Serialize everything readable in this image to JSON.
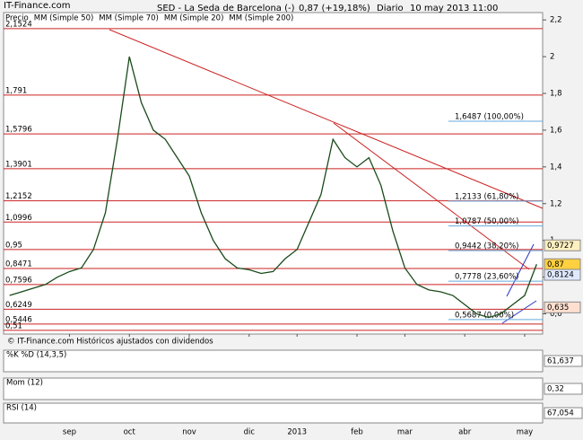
{
  "chart_data": {
    "type": "line",
    "site": "IT-Finance.com",
    "title": "SED - La Seda de Barcelona (-)",
    "quote": "0,87 (+19,18%)",
    "period": "Diario",
    "date": "10 may 2013 11:00",
    "legend": [
      {
        "text": "Precio",
        "color": "#000000"
      },
      {
        "text": "MM (Simple 50)",
        "color": "#aaaaaa"
      },
      {
        "text": "MM (Simple 70)",
        "color": "#2233cc"
      },
      {
        "text": "MM (Simple 20)",
        "color": "#cc2222"
      },
      {
        "text": "MM (Simple 200)",
        "color": "#228844"
      }
    ],
    "footnote": "© IT-Finance.com  Históricos ajustados con dividendos",
    "categories": [
      null,
      null,
      null,
      null,
      null,
      "sep",
      null,
      null,
      null,
      null,
      "oct",
      null,
      null,
      null,
      null,
      "nov",
      null,
      null,
      null,
      null,
      "dic",
      null,
      null,
      null,
      "2013",
      null,
      null,
      null,
      null,
      "feb",
      null,
      null,
      null,
      "mar",
      null,
      null,
      null,
      null,
      "abr",
      null,
      null,
      null,
      null,
      "may",
      null
    ],
    "series": [
      {
        "name": "Precio",
        "color": "#1a4a1a",
        "values": [
          0.7,
          0.72,
          0.74,
          0.76,
          0.8,
          0.83,
          0.85,
          0.95,
          1.15,
          1.55,
          2.0,
          1.75,
          1.6,
          1.55,
          1.45,
          1.35,
          1.15,
          1.0,
          0.9,
          0.85,
          0.84,
          0.82,
          0.83,
          0.9,
          0.95,
          1.1,
          1.25,
          1.55,
          1.45,
          1.4,
          1.45,
          1.3,
          1.05,
          0.85,
          0.76,
          0.73,
          0.72,
          0.7,
          0.65,
          0.6,
          0.58,
          0.6,
          0.65,
          0.7,
          0.87
        ]
      }
    ],
    "ylim": [
      0.49,
      2.24
    ],
    "yticks": [
      {
        "value": 2.2,
        "label": "2,2"
      },
      2,
      {
        "value": 1.8,
        "label": "1,8"
      },
      {
        "value": 1.6,
        "label": "1,6"
      },
      {
        "value": 1.4,
        "label": "1,4"
      },
      {
        "value": 1.2,
        "label": "1,2"
      },
      1,
      {
        "value": 0.8,
        "label": "0,8"
      },
      {
        "value": 0.6,
        "label": "0,6"
      }
    ],
    "levels": [
      {
        "value": 2.1524,
        "label": "2,1524"
      },
      {
        "value": 1.791,
        "label": "1,791"
      },
      {
        "value": 1.5796,
        "label": "1,5796"
      },
      {
        "value": 1.3901,
        "label": "1,3901"
      },
      {
        "value": 1.2152,
        "label": "1,2152"
      },
      {
        "value": 1.0996,
        "label": "1,0996"
      },
      {
        "value": 0.95,
        "label": "0,95"
      },
      {
        "value": 0.8471,
        "label": "0,8471"
      },
      {
        "value": 0.7596,
        "label": "0,7596"
      },
      {
        "value": 0.6249,
        "label": "0,6249"
      },
      {
        "value": 0.5446,
        "label": "0,5446"
      },
      {
        "value": 0.51,
        "label": "0,51"
      }
    ],
    "fibonacci": [
      {
        "value": 1.6487,
        "label": "1,6487 (100,00%)"
      },
      {
        "value": 1.2133,
        "label": "1,2133 (61,80%)"
      },
      {
        "value": 1.0787,
        "label": "1,0787 (50,00%)"
      },
      {
        "value": 0.9442,
        "label": "0,9442 (38,20%)"
      },
      {
        "value": 0.7778,
        "label": "0,7778 (23,60%)"
      },
      {
        "value": 0.5687,
        "label": "0,5687 (0,00%)"
      }
    ],
    "price_boxes": [
      {
        "value": 0.9727,
        "label": "0,9727",
        "color": "#fff0c0"
      },
      {
        "value": 0.87,
        "label": "0,87",
        "color": "#ffd040"
      },
      {
        "value": 0.8124,
        "label": "0,8124",
        "color": "#e0e8ff"
      },
      {
        "value": 0.635,
        "label": "0,635",
        "color": "#ffe0d0"
      }
    ],
    "indicators": [
      {
        "name": "%K %D (14,3,5)",
        "value": 61.637,
        "label": "61,637"
      },
      {
        "name": "Mom (12)",
        "value": 0.32,
        "label": "0,32"
      },
      {
        "name": "RSI (14)",
        "value": 67.054,
        "label": "67,054"
      }
    ]
  }
}
